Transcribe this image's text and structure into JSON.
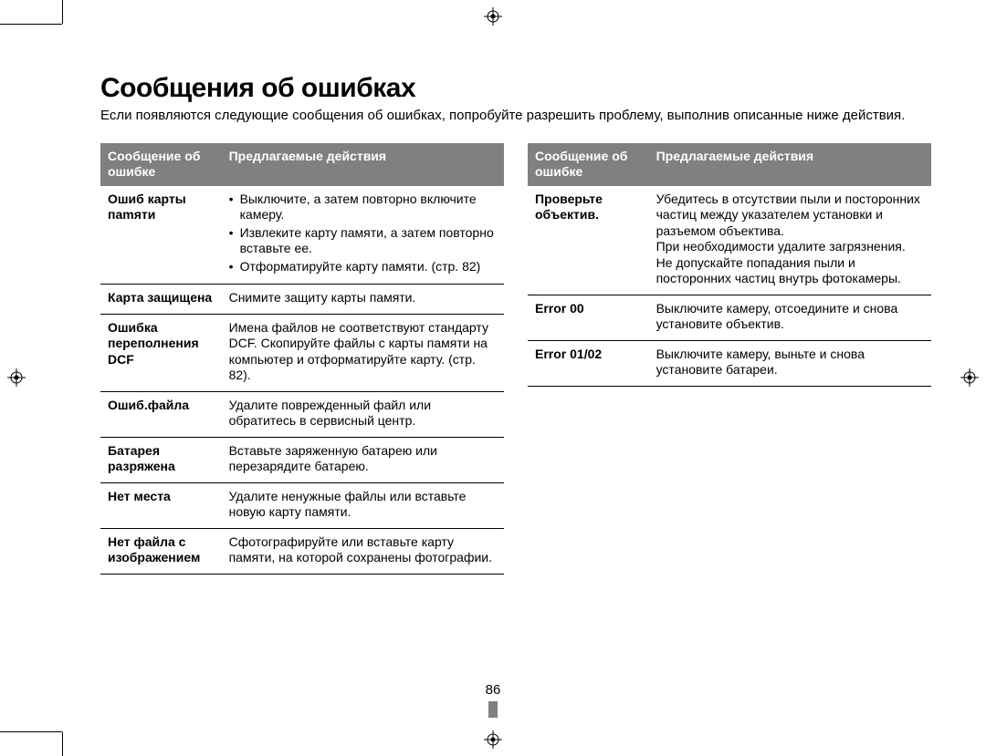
{
  "page_number": "86",
  "title": "Сообщения об ошибках",
  "intro": "Если появляются следующие сообщения об ошибках, попробуйте разрешить проблему, выполнив описанные ниже действия.",
  "table_headers": {
    "msg": "Сообщение об ошибке",
    "action": "Предлагаемые действия"
  },
  "left_rows": [
    {
      "msg": "Ошиб карты пamяти",
      "bullets": [
        "Выключите, а затем повторно включите камеру.",
        "Извлеките карту памяти, а затем повторно вставьте ее.",
        "Отформатируйте карту памяти. (стр. 82)"
      ]
    },
    {
      "msg": "Карта защищена",
      "action": "Снимите защиту карты памяти."
    },
    {
      "msg": "Ошибка переполнения DCF",
      "action": "Имена файлов не соответствуют стандарту DCF. Скопируйте файлы с карты памяти на компьютер и отформатируйте карту. (стр. 82)."
    },
    {
      "msg": "Ошиб.файла",
      "action": "Удалите поврежденный файл или обратитесь в сервисный центр."
    },
    {
      "msg": "Батарея разряжена",
      "action": "Вставьте заряженную батарею или перезарядите батарею."
    },
    {
      "msg": "Нет места",
      "action": "Удалите ненужные файлы или вставьте новую карту памяти."
    },
    {
      "msg": "Нет файла с изображением",
      "action": "Сфотографируйте или вставьте карту памяти, на которой сохранены фотографии."
    }
  ],
  "right_rows": [
    {
      "msg": "Проверьте объектив.",
      "action": "Убедитесь в отсутствии пыли и посторонних частиц между указателем установки и разъемом объектива.\nПри необходимости удалите загрязнения.\nНе допускайте попадания пыли и посторонних частиц внутрь фотокамеры."
    },
    {
      "msg": "Error 00",
      "action": "Выключите камеру, отсоедините и снова установите объектив."
    },
    {
      "msg": "Error 01/02",
      "action": "Выключите камеру, выньте и снова установите батареи."
    }
  ],
  "colors": {
    "header_bg": "#808080",
    "header_fg": "#ffffff",
    "rule": "#000000",
    "pagebar": "#808080"
  }
}
